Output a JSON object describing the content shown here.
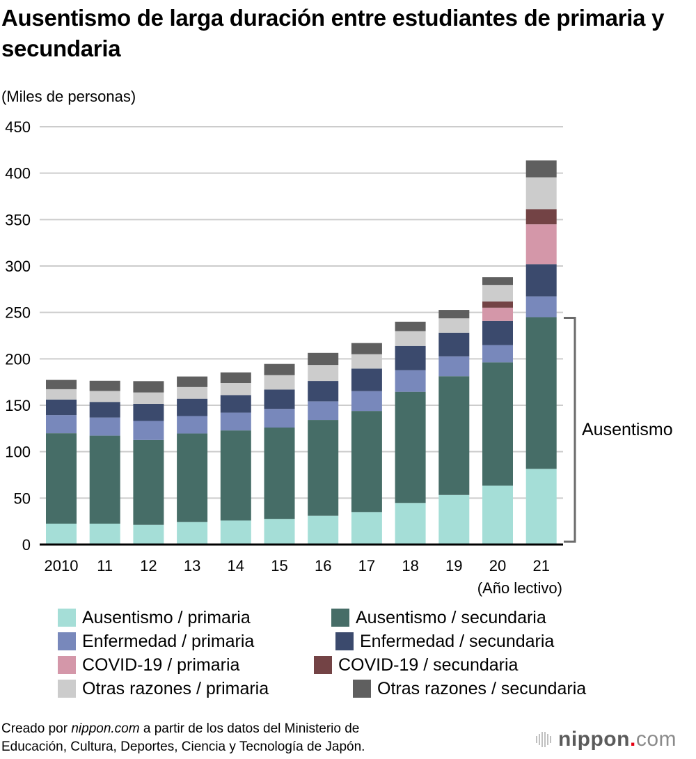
{
  "title": "Ausentismo de larga duración entre estudiantes de primaria y secundaria",
  "unit_label": "(Miles de personas)",
  "source": {
    "prefix": "Creado por ",
    "brand": "nippon.com",
    "rest_line1": " a partir de los datos del Ministerio de",
    "line2": "Educación, Cultura, Deportes, Ciencia y Tecnología de Japón."
  },
  "logo": {
    "brand": "nippon",
    "dot": ".",
    "tld": "com"
  },
  "chart_data": {
    "type": "bar",
    "stacked": true,
    "title": "Ausentismo de larga duración entre estudiantes de primaria y secundaria",
    "ylabel": "(Miles de personas)",
    "xlabel": "(Año lectivo)",
    "ylim": [
      0,
      450
    ],
    "yticks": [
      0,
      50,
      100,
      150,
      200,
      250,
      300,
      350,
      400,
      450
    ],
    "grid": true,
    "legend_position": "bottom",
    "categories": [
      "2010",
      "11",
      "12",
      "13",
      "14",
      "15",
      "16",
      "17",
      "18",
      "19",
      "20",
      "21"
    ],
    "series": [
      {
        "name": "Ausentismo / primaria",
        "color": "#a5ded7",
        "values": [
          22.5,
          22.5,
          21.2,
          24.2,
          25.9,
          27.6,
          31.0,
          35.0,
          44.8,
          53.4,
          63.4,
          81.5
        ]
      },
      {
        "name": "Ausentismo / secundaria",
        "color": "#466d67",
        "values": [
          97.4,
          94.8,
          91.4,
          95.4,
          97.0,
          98.4,
          103.2,
          108.9,
          119.7,
          127.9,
          132.8,
          163.4
        ]
      },
      {
        "name": "Enfermedad / primaria",
        "color": "#7888bb",
        "values": [
          19.5,
          19.5,
          20.5,
          18.8,
          19.2,
          20.1,
          20.0,
          21.3,
          23.3,
          21.4,
          18.6,
          22.4
        ]
      },
      {
        "name": "Enfermedad / secundaria",
        "color": "#3b4a6d",
        "values": [
          16.8,
          16.8,
          18.4,
          18.6,
          18.9,
          20.8,
          22.0,
          24.3,
          26.1,
          25.5,
          26.1,
          34.7
        ]
      },
      {
        "name": "COVID-19 / primaria",
        "color": "#d497a9",
        "values": [
          0,
          0,
          0,
          0,
          0,
          0,
          0,
          0,
          0,
          0,
          14.2,
          42.9
        ]
      },
      {
        "name": "COVID-19 / secundaria",
        "color": "#734345",
        "values": [
          0,
          0,
          0,
          0,
          0,
          0,
          0,
          0,
          0,
          0,
          6.7,
          16.4
        ]
      },
      {
        "name": "Otras razones / primaria",
        "color": "#cccccc",
        "values": [
          11.1,
          11.8,
          12.3,
          12.6,
          13.0,
          15.5,
          17.2,
          15.5,
          16.0,
          15.4,
          17.8,
          34.2
        ]
      },
      {
        "name": "Otras razones / secundaria",
        "color": "#5f5f5f",
        "values": [
          10.0,
          11.0,
          12.2,
          11.4,
          11.4,
          12.1,
          13.0,
          12.0,
          10.1,
          9.1,
          8.3,
          18.2
        ]
      }
    ],
    "annotation": {
      "text": "Ausentismo",
      "spans_series": [
        "Ausentismo / primaria",
        "Ausentismo / secundaria"
      ]
    },
    "axis_color": "#000000",
    "grid_color": "#cccccc",
    "bracket_color": "#6b6b6b"
  }
}
